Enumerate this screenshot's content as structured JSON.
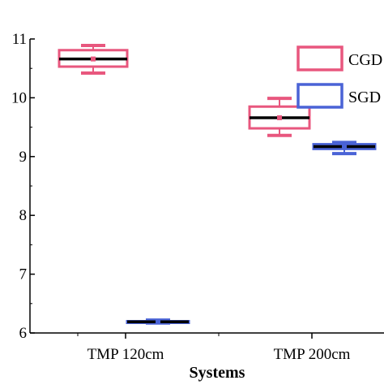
{
  "chart_data": {
    "type": "box",
    "title": "",
    "xlabel": "Systems",
    "ylabel": "",
    "categories": [
      "TMP 120cm",
      "TMP 200cm"
    ],
    "ylim": [
      6,
      11
    ],
    "yticks": [
      "6",
      "7",
      "8",
      "9",
      "10",
      "11"
    ],
    "legend_position": "top-right",
    "grid": false,
    "series": [
      {
        "name": "CGD",
        "color": "#e8577e",
        "boxes": [
          {
            "category": "TMP 120cm",
            "min": 10.42,
            "q1": 10.53,
            "median": 10.66,
            "mean": 10.66,
            "q3": 10.81,
            "max": 10.89
          },
          {
            "category": "TMP 200cm",
            "min": 9.36,
            "q1": 9.48,
            "median": 9.66,
            "mean": 9.66,
            "q3": 9.85,
            "max": 9.99
          }
        ]
      },
      {
        "name": "SGD",
        "color": "#4a63d6",
        "boxes": [
          {
            "category": "TMP 120cm",
            "min": 6.17,
            "q1": 6.18,
            "median": 6.19,
            "mean": 6.19,
            "q3": 6.2,
            "max": 6.22
          },
          {
            "category": "TMP 200cm",
            "min": 9.05,
            "q1": 9.13,
            "median": 9.17,
            "mean": 9.17,
            "q3": 9.21,
            "max": 9.24
          }
        ]
      }
    ]
  }
}
